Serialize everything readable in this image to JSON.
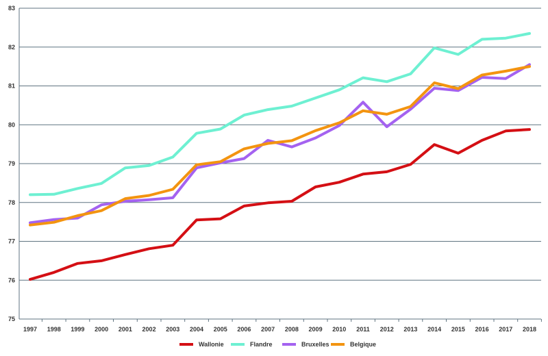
{
  "chart_data": {
    "type": "line",
    "title": "",
    "xlabel": "",
    "ylabel": "",
    "ylim": [
      75,
      83
    ],
    "yticks": [
      75,
      76,
      77,
      78,
      79,
      80,
      81,
      82,
      83
    ],
    "grid": "horizontal",
    "legend": "bottom-center",
    "categories": [
      "1997",
      "1998",
      "1999",
      "2000",
      "2001",
      "2002",
      "2003",
      "2004",
      "2005",
      "2006",
      "2007",
      "2008",
      "2009",
      "2010",
      "2011",
      "2012",
      "2013",
      "2014",
      "2015",
      "2016",
      "2017",
      "2018"
    ],
    "series": [
      {
        "name": "Wallonie",
        "color": "#d40f14",
        "values": [
          76.02,
          76.2,
          76.43,
          76.5,
          76.66,
          76.81,
          76.9,
          77.55,
          77.58,
          77.91,
          77.99,
          78.03,
          78.4,
          78.52,
          78.73,
          78.79,
          78.98,
          79.49,
          79.27,
          79.6,
          79.84,
          79.88
        ]
      },
      {
        "name": "Flandre",
        "color": "#6ef0d2",
        "values": [
          78.2,
          78.21,
          78.36,
          78.49,
          78.89,
          78.95,
          79.17,
          79.78,
          79.89,
          80.25,
          80.39,
          80.48,
          80.69,
          80.9,
          81.21,
          81.11,
          81.31,
          81.98,
          81.81,
          82.2,
          82.23,
          82.35
        ]
      },
      {
        "name": "Bruxelles",
        "color": "#a462f0",
        "values": [
          77.48,
          77.56,
          77.6,
          77.94,
          78.03,
          78.07,
          78.12,
          78.89,
          79.02,
          79.13,
          79.6,
          79.43,
          79.66,
          79.98,
          80.58,
          79.95,
          80.4,
          80.94,
          80.88,
          81.22,
          81.19,
          81.55
        ]
      },
      {
        "name": "Belgique",
        "color": "#f39410",
        "values": [
          77.42,
          77.49,
          77.66,
          77.79,
          78.1,
          78.18,
          78.34,
          78.97,
          79.05,
          79.38,
          79.52,
          79.59,
          79.85,
          80.05,
          80.36,
          80.27,
          80.47,
          81.08,
          80.93,
          81.28,
          81.38,
          81.5
        ]
      }
    ]
  }
}
